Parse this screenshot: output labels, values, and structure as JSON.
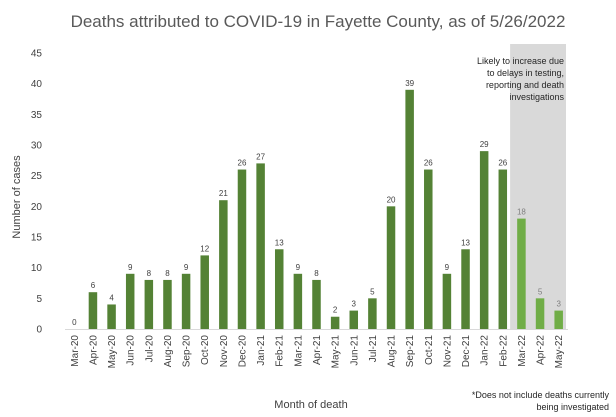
{
  "chart_data": {
    "type": "bar",
    "title": "Deaths attributed to COVID-19 in Fayette County, as of 5/26/2022",
    "xlabel": "Month of death",
    "ylabel": "Number of cases",
    "ylim": [
      0,
      45
    ],
    "yticks": [
      "0",
      "5",
      "10",
      "15",
      "20",
      "25",
      "30",
      "35",
      "40",
      "45"
    ],
    "grid": false,
    "categories": [
      "Mar-20",
      "Apr-20",
      "May-20",
      "Jun-20",
      "Jul-20",
      "Aug-20",
      "Sep-20",
      "Oct-20",
      "Nov-20",
      "Dec-20",
      "Jan-21",
      "Feb-21",
      "Mar-21",
      "Apr-21",
      "May-21",
      "Jun-21",
      "Jul-21",
      "Aug-21",
      "Sep-21",
      "Oct-21",
      "Nov-21",
      "Dec-21",
      "Jan-22",
      "Feb-22",
      "Mar-22",
      "Apr-22",
      "May-22"
    ],
    "values": [
      0,
      6,
      4,
      9,
      8,
      8,
      9,
      12,
      21,
      26,
      27,
      13,
      9,
      8,
      2,
      3,
      5,
      20,
      39,
      26,
      9,
      13,
      29,
      26,
      18,
      5,
      3
    ],
    "highlight_categories": [
      "Mar-22",
      "Apr-22",
      "May-22"
    ],
    "annotation": [
      "Likely to increase due",
      "to delays in testing,",
      "reporting and death",
      "investigations"
    ],
    "footnote": [
      "*Does not include deaths currently",
      "being investigated"
    ],
    "colors": {
      "bar": "#548235",
      "bar_highlight": "#70ad47",
      "shade": "#d9d9d9",
      "axis": "#d9d9d9"
    }
  }
}
